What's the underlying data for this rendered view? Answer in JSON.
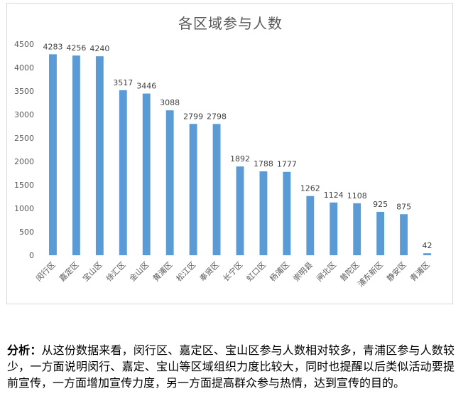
{
  "chart_data": {
    "type": "bar",
    "title": "各区域参与人数",
    "categories": [
      "闵行区",
      "嘉定区",
      "宝山区",
      "徐汇区",
      "金山区",
      "黄浦区",
      "松江区",
      "奉贤区",
      "长宁区",
      "虹口区",
      "杨浦区",
      "崇明县",
      "闸北区",
      "普陀区",
      "浦东新区",
      "静安区",
      "青浦区"
    ],
    "values": [
      4283,
      4256,
      4240,
      3517,
      3446,
      3088,
      2799,
      2798,
      1892,
      1788,
      1777,
      1262,
      1124,
      1108,
      925,
      875,
      42
    ],
    "yticks": [
      0,
      500,
      1000,
      1500,
      2000,
      2500,
      3000,
      3500,
      4000,
      4500
    ],
    "ylim": [
      0,
      4500
    ],
    "xlabel": "",
    "ylabel": "",
    "grid": false,
    "bar_color": "#5b9bd5"
  },
  "analysis": {
    "label": "分析",
    "colon": "：",
    "text": "从这份数据来看，闵行区、嘉定区、宝山区参与人数相对较多，青浦区参与人数较少，一方面说明闵行、嘉定、宝山等区域组织力度比较大，同时也提醒以后类似活动要提前宣传，一方面增加宣传力度，另一方面提高群众参与热情，达到宣传的目的。"
  }
}
